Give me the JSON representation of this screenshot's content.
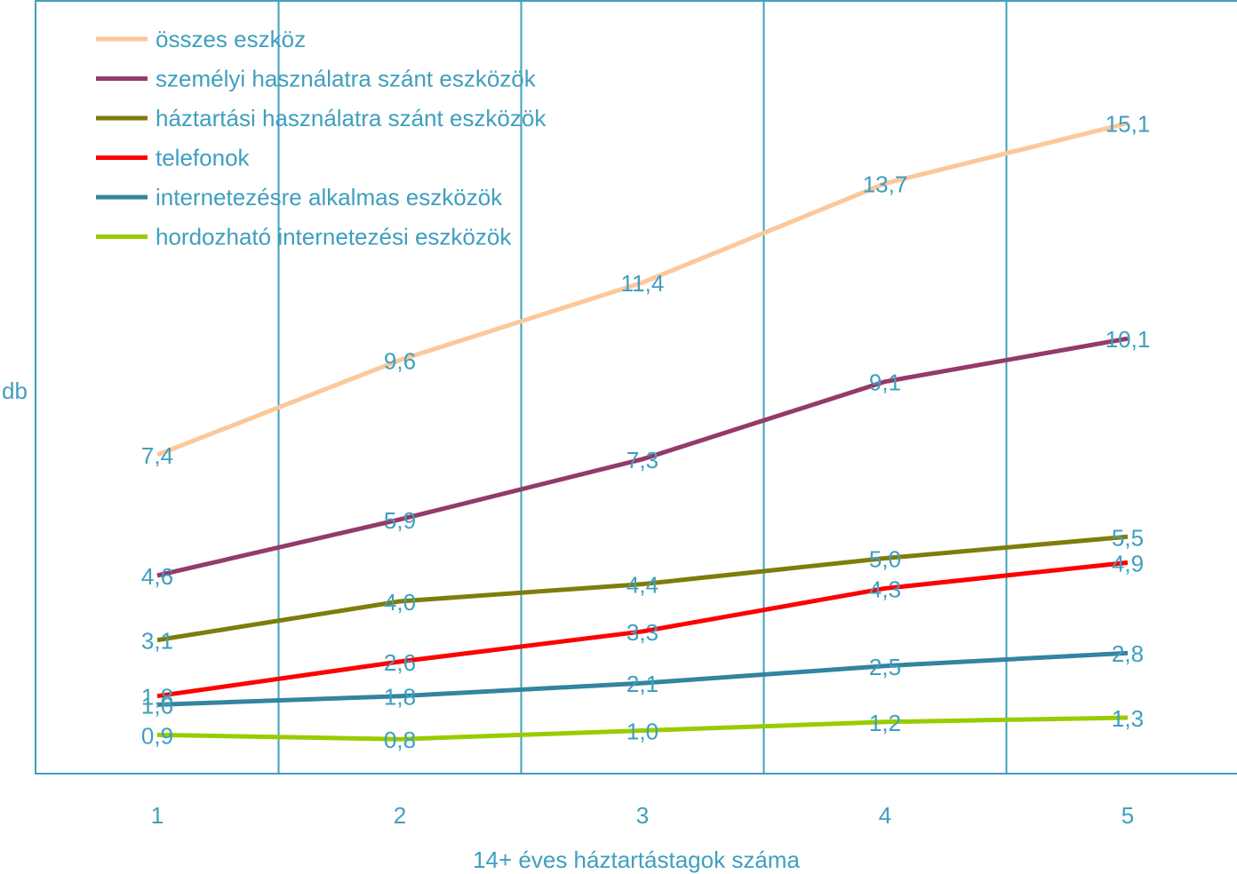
{
  "chart_data": {
    "type": "line",
    "x": [
      1,
      2,
      3,
      4,
      5
    ],
    "xlabel": "14+ éves háztartástagok száma",
    "ylabel": "db",
    "ylim": [
      0,
      16
    ],
    "grid": "vertical lines between categories",
    "legend_position": "top-left",
    "series": [
      {
        "name": "összes eszköz",
        "color": "#fcc89a",
        "values": [
          7.4,
          9.6,
          11.4,
          13.7,
          15.1
        ],
        "labels": [
          "7,4",
          "9,6",
          "11,4",
          "13,7",
          "15,1"
        ]
      },
      {
        "name": "személyi használatra szánt eszközök",
        "color": "#943a6a",
        "values": [
          4.6,
          5.9,
          7.3,
          9.1,
          10.1
        ],
        "labels": [
          "4,6",
          "5,9",
          "7,3",
          "9,1",
          "10,1"
        ]
      },
      {
        "name": "háztartási használatra szánt eszközök",
        "color": "#7f7d0a",
        "values": [
          3.1,
          4.0,
          4.4,
          5.0,
          5.5
        ],
        "labels": [
          "3,1",
          "4,0",
          "4,4",
          "5,0",
          "5,5"
        ]
      },
      {
        "name": "telefonok",
        "color": "#ff0000",
        "values": [
          1.8,
          2.6,
          3.3,
          4.3,
          4.9
        ],
        "labels": [
          "1,8",
          "2,6",
          "3,3",
          "4,3",
          "4,9"
        ]
      },
      {
        "name": "internetezésre alkalmas eszközök",
        "color": "#33849f",
        "values": [
          1.6,
          1.8,
          2.1,
          2.5,
          2.8
        ],
        "labels": [
          "1,6",
          "1,8",
          "2,1",
          "2,5",
          "2,8"
        ]
      },
      {
        "name": "hordozható internetezési eszközök",
        "color": "#99cc00",
        "values": [
          0.9,
          0.8,
          1.0,
          1.2,
          1.3
        ],
        "labels": [
          "0,9",
          "0,8",
          "1,0",
          "1,2",
          "1,3"
        ]
      }
    ],
    "x_tick_labels": [
      "1",
      "2",
      "3",
      "4",
      "5"
    ]
  },
  "colors": {
    "frame": "#3f9fbe",
    "text": "#3f9fbe"
  }
}
